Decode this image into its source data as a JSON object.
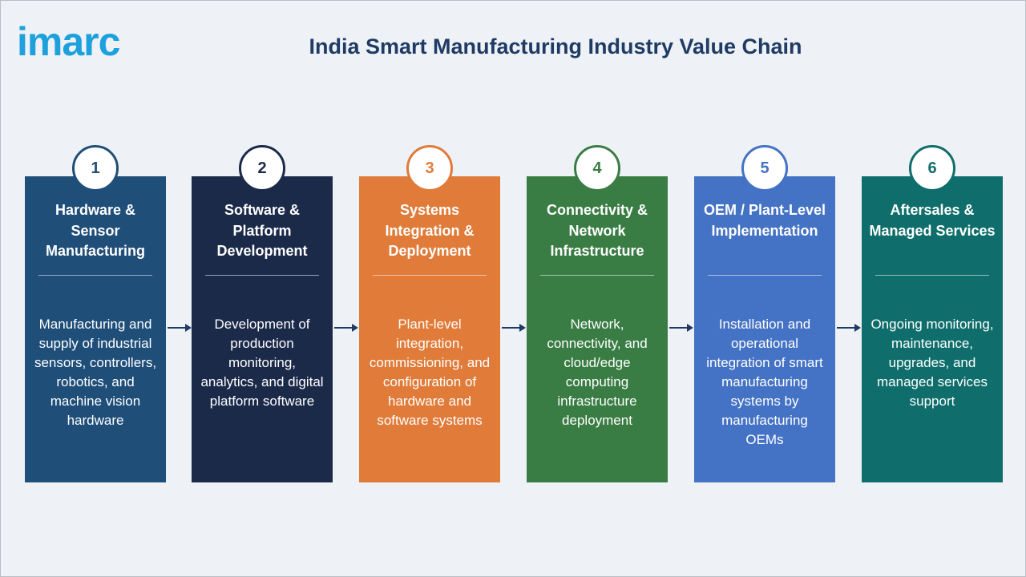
{
  "logo": "imarc",
  "title": "India Smart Manufacturing Industry Value Chain",
  "stages": [
    {
      "number": "1",
      "title": "Hardware & Sensor Manufacturing",
      "description": "Manufacturing and supply of industrial sensors, controllers, robotics, and machine vision hardware",
      "color": "#1f4e79"
    },
    {
      "number": "2",
      "title": "Software & Platform Development",
      "description": "Development of production monitoring, analytics, and digital platform software",
      "color": "#1c2a4a"
    },
    {
      "number": "3",
      "title": "Systems Integration & Deployment",
      "description": "Plant-level integration, commissioning, and configuration of hardware and software systems",
      "color": "#e07b39"
    },
    {
      "number": "4",
      "title": "Connectivity & Network Infrastructure",
      "description": "Network, connectivity, and cloud/edge computing infrastructure deployment",
      "color": "#3a7d44"
    },
    {
      "number": "5",
      "title": "OEM / Plant-Level Implementation",
      "description": "Installation and operational integration of smart manufacturing systems by manufacturing OEMs",
      "color": "#4472c4"
    },
    {
      "number": "6",
      "title": "Aftersales & Managed Services",
      "description": "Ongoing monitoring, maintenance, upgrades, and managed services support",
      "color": "#0f6e6b"
    }
  ]
}
